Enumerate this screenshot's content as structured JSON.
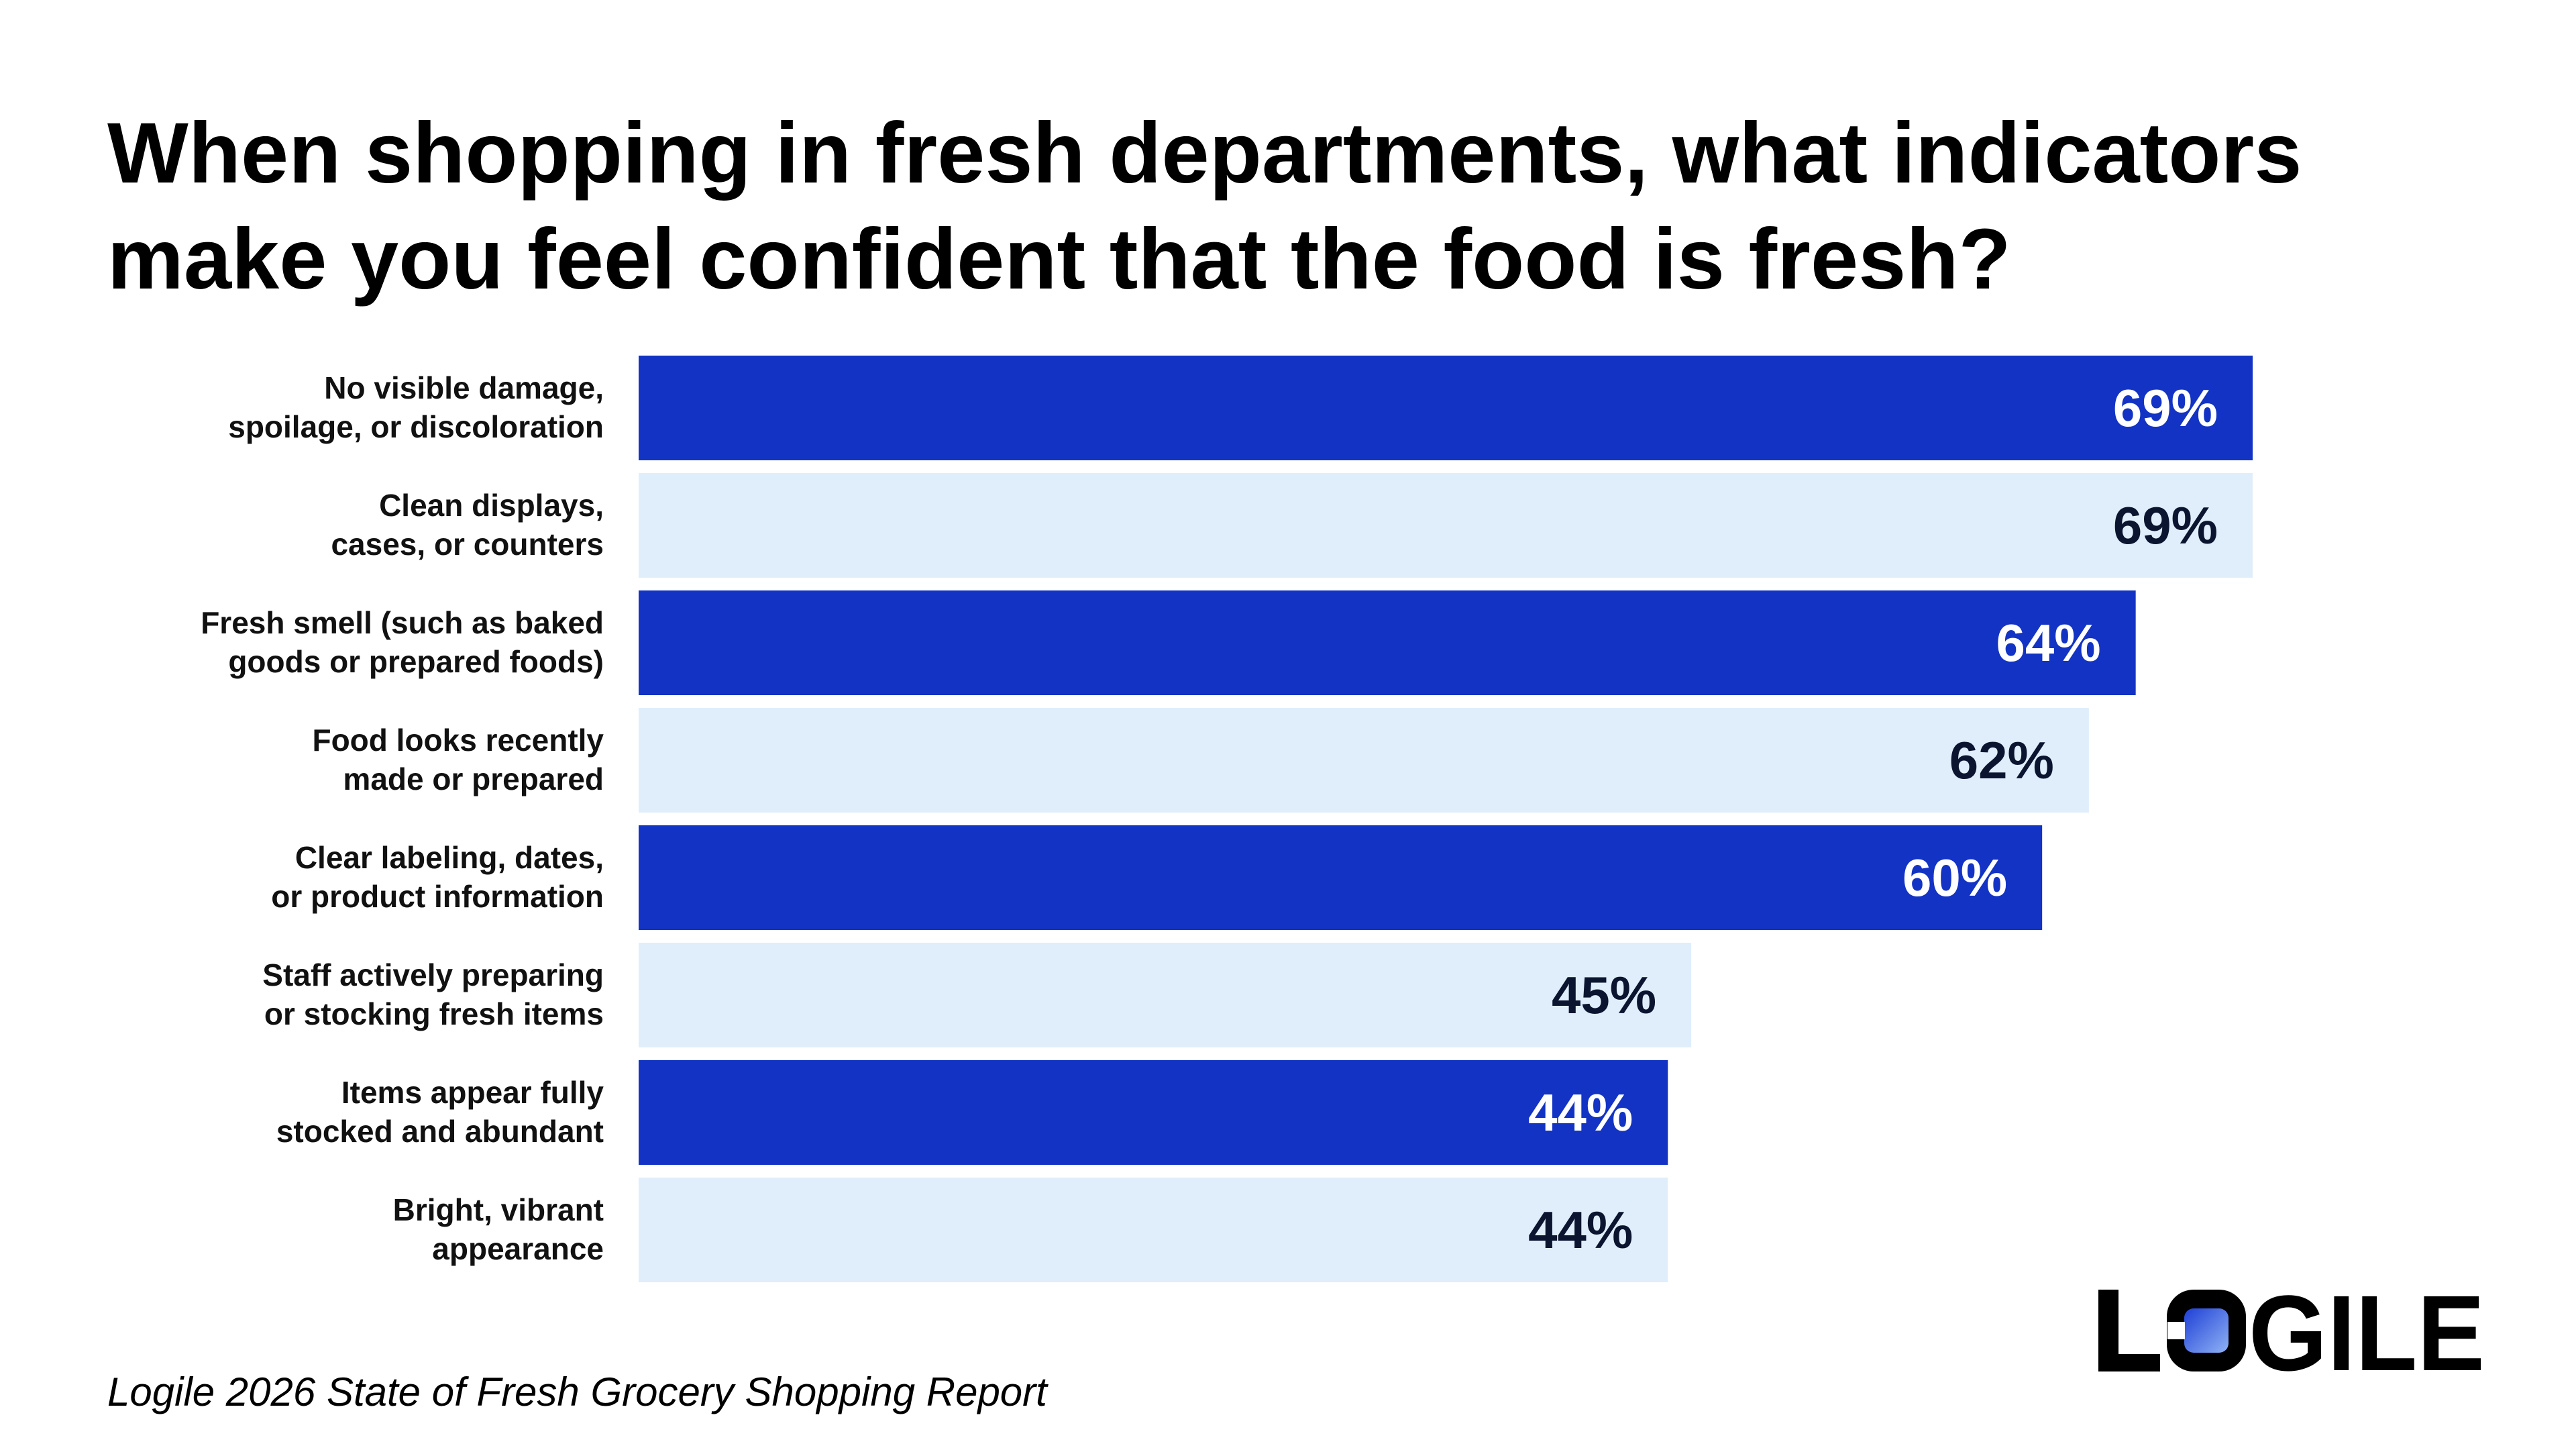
{
  "title_lines": [
    "When shopping in fresh departments, what indicators",
    "make you feel confident that the food is fresh?"
  ],
  "source": "Logile 2026 State of Fresh Grocery Shopping Report",
  "logo": {
    "text": "LOGILE"
  },
  "colors": {
    "dark_bar": "#1233C4",
    "light_bar": "#E0EEFB",
    "dark_value_text": "#FFFFFF",
    "light_value_text": "#0B1530"
  },
  "chart_data": {
    "type": "bar",
    "orientation": "horizontal",
    "title": "When shopping in fresh departments, what indicators make you feel confident that the food is fresh?",
    "categories": [
      [
        "No visible damage,",
        "spoilage, or discoloration"
      ],
      [
        "Clean displays,",
        "cases, or counters"
      ],
      [
        "Fresh smell (such as baked",
        "goods or prepared foods)"
      ],
      [
        "Food looks recently",
        "made or prepared"
      ],
      [
        "Clear labeling, dates,",
        "or product information"
      ],
      [
        "Staff actively preparing",
        "or stocking fresh items"
      ],
      [
        "Items appear fully",
        "stocked and abundant"
      ],
      [
        "Bright, vibrant",
        "appearance"
      ]
    ],
    "values": [
      69,
      69,
      64,
      62,
      60,
      45,
      44,
      44
    ],
    "value_labels": [
      "69%",
      "69%",
      "64%",
      "62%",
      "60%",
      "45%",
      "44%",
      "44%"
    ],
    "unit": "%",
    "grid": false,
    "legend": "none"
  }
}
